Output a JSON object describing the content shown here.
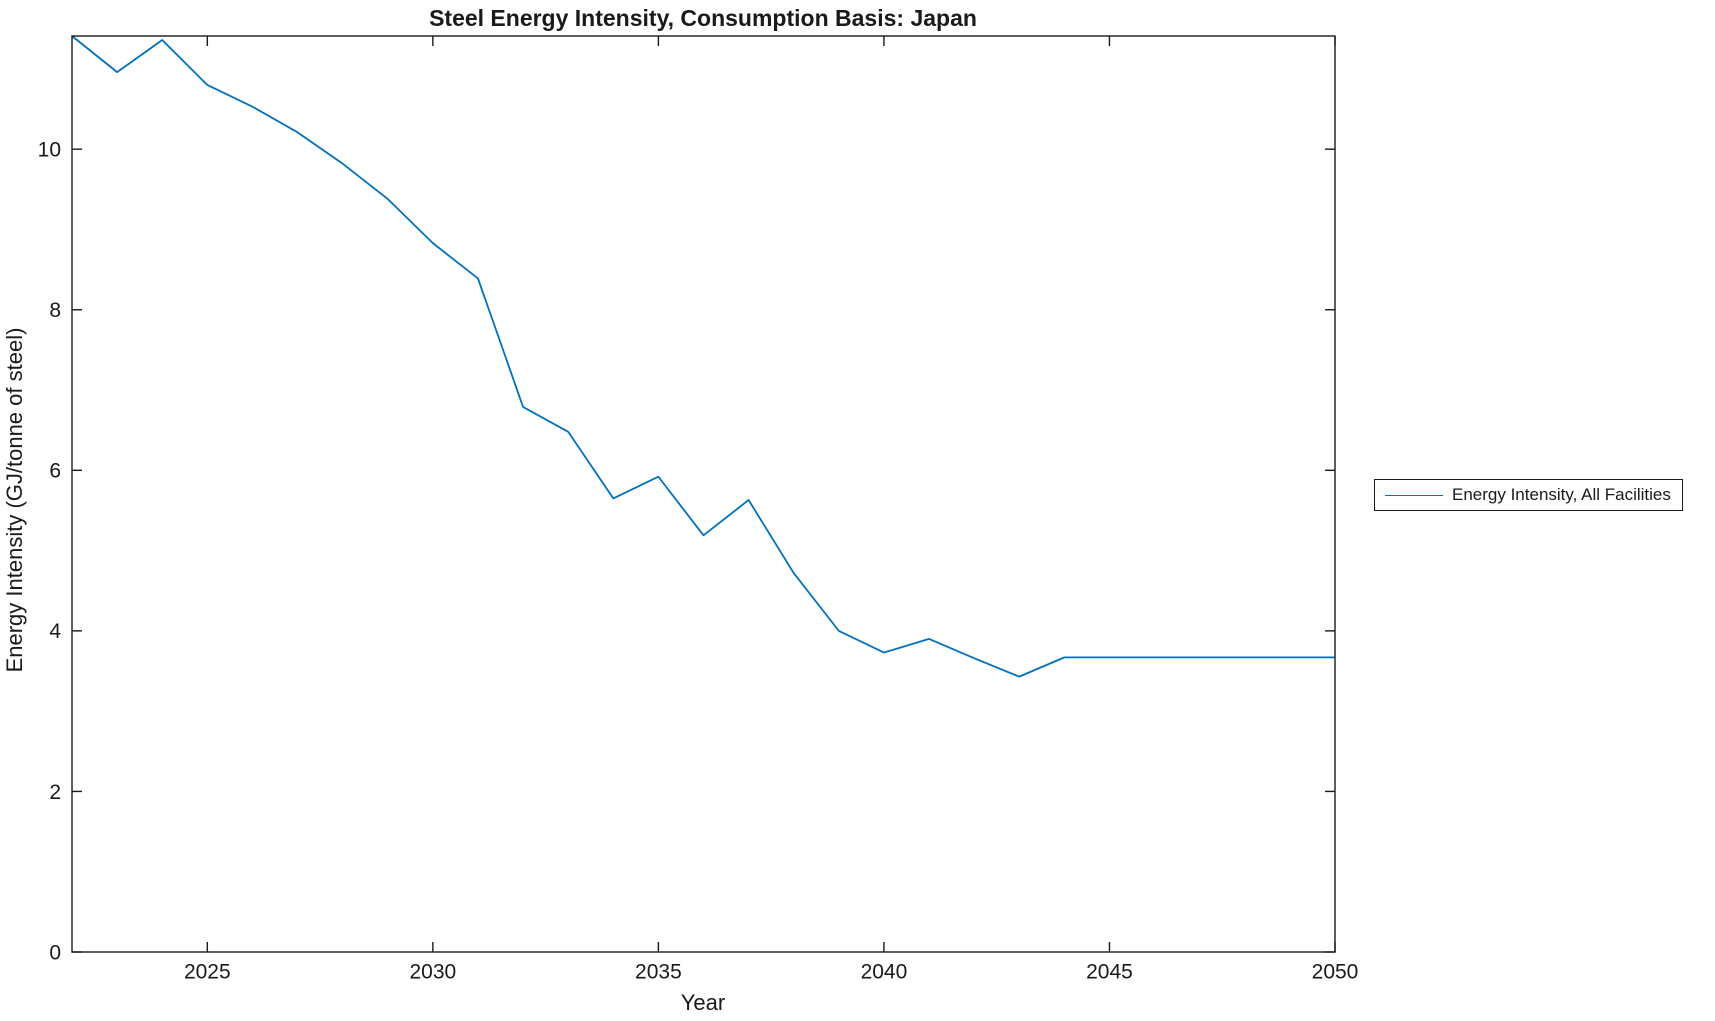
{
  "chart_data": {
    "type": "line",
    "title": "Steel Energy Intensity, Consumption Basis: Japan",
    "xlabel": "Year",
    "ylabel": "Energy Intensity (GJ/tonne of steel)",
    "xlim": [
      2022,
      2050
    ],
    "ylim": [
      0,
      11.41
    ],
    "x_ticks": [
      2025,
      2030,
      2035,
      2040,
      2045,
      2050
    ],
    "y_ticks": [
      0,
      2,
      4,
      6,
      8,
      10
    ],
    "grid": false,
    "box": true,
    "tick_direction": "in",
    "legend_position": "outside-right",
    "axis_color": "#1a1a1a",
    "background_color": "#ffffff",
    "series": [
      {
        "name": "Energy Intensity, All Facilities",
        "color": "#0072BD",
        "x": [
          2022,
          2023,
          2024,
          2025,
          2026,
          2027,
          2028,
          2029,
          2030,
          2031,
          2032,
          2033,
          2034,
          2035,
          2036,
          2037,
          2038,
          2039,
          2040,
          2041,
          2042,
          2043,
          2044,
          2045,
          2046,
          2047,
          2048,
          2049,
          2050
        ],
        "y": [
          11.41,
          10.96,
          11.36,
          10.8,
          10.53,
          10.21,
          9.82,
          9.38,
          8.83,
          8.39,
          6.79,
          6.48,
          5.65,
          5.92,
          5.19,
          5.63,
          4.72,
          4.0,
          3.73,
          3.9,
          3.66,
          3.43,
          3.67,
          3.67,
          3.67,
          3.67,
          3.67,
          3.67,
          3.67
        ]
      }
    ]
  }
}
